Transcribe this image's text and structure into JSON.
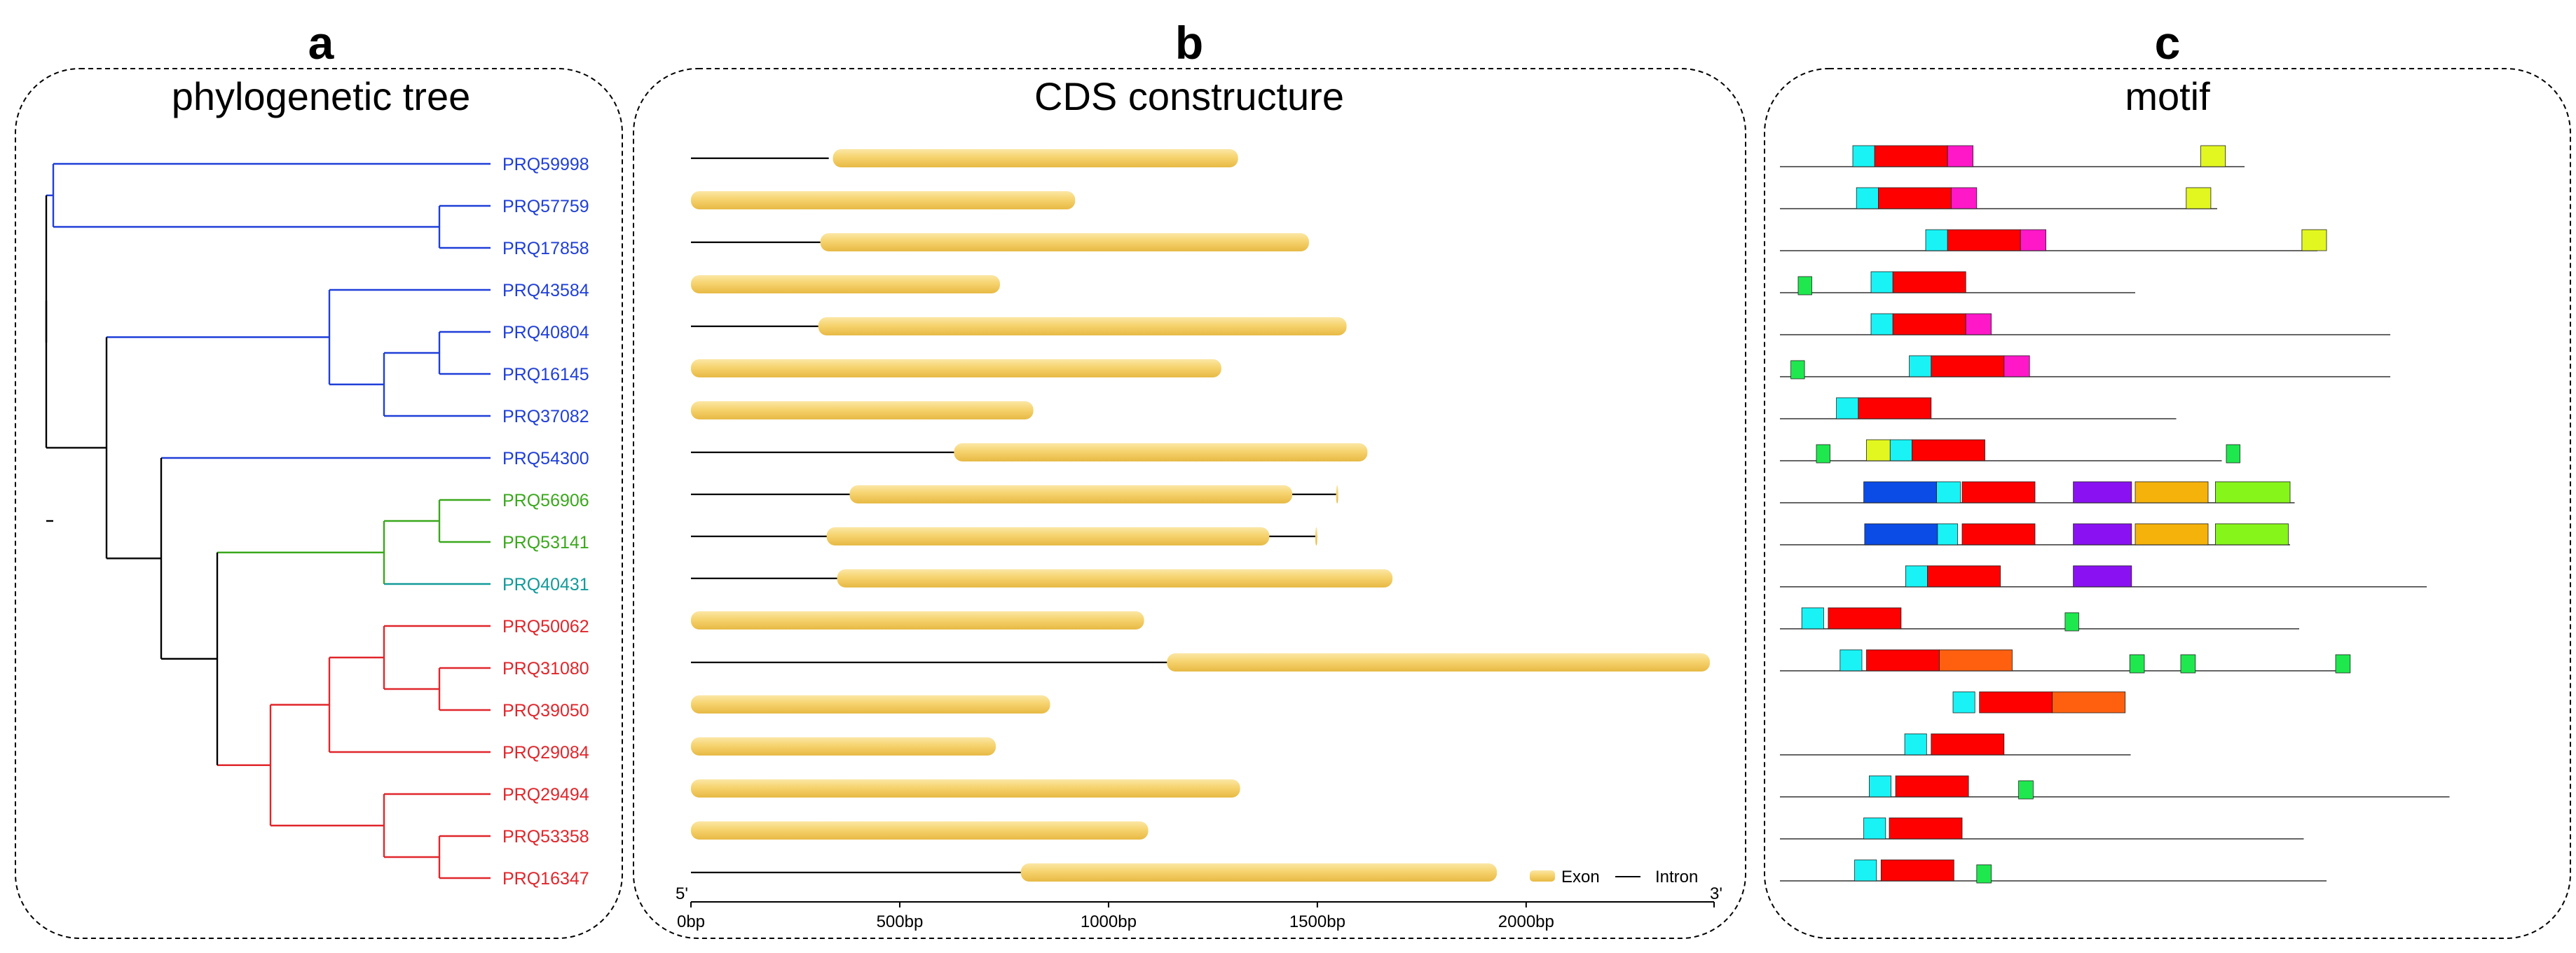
{
  "colors": {
    "blue_clade": "#1f3fd8",
    "green_clade": "#3aa81c",
    "teal_clade": "#139a9a",
    "red_clade": "#e0262b",
    "root": "#000000",
    "exon": "#f6d36e",
    "intron": "#000000",
    "panel_border": "#000000"
  },
  "panels": {
    "a": {
      "letter": "a",
      "title": "phylogenetic tree"
    },
    "b": {
      "letter": "b",
      "title": "CDS constructure"
    },
    "c": {
      "letter": "c",
      "title": "motif"
    }
  },
  "tree": {
    "leaves": [
      {
        "id": "PRQ59998",
        "clade": "blue"
      },
      {
        "id": "PRQ57759",
        "clade": "blue"
      },
      {
        "id": "PRQ17858",
        "clade": "blue"
      },
      {
        "id": "PRQ43584",
        "clade": "blue"
      },
      {
        "id": "PRQ40804",
        "clade": "blue"
      },
      {
        "id": "PRQ16145",
        "clade": "blue"
      },
      {
        "id": "PRQ37082",
        "clade": "blue"
      },
      {
        "id": "PRQ54300",
        "clade": "blue"
      },
      {
        "id": "PRQ56906",
        "clade": "green"
      },
      {
        "id": "PRQ53141",
        "clade": "green"
      },
      {
        "id": "PRQ40431",
        "clade": "teal"
      },
      {
        "id": "PRQ50062",
        "clade": "red"
      },
      {
        "id": "PRQ31080",
        "clade": "red"
      },
      {
        "id": "PRQ39050",
        "clade": "red"
      },
      {
        "id": "PRQ29084",
        "clade": "red"
      },
      {
        "id": "PRQ29494",
        "clade": "red"
      },
      {
        "id": "PRQ53358",
        "clade": "red"
      },
      {
        "id": "PRQ16347",
        "clade": "red"
      }
    ]
  },
  "chart_data": {
    "type": "gene-structure",
    "title": "CDS constructure",
    "x_unit": "bp",
    "xlim": [
      0,
      2450
    ],
    "ticks": [
      0,
      500,
      1000,
      1500,
      2000
    ],
    "tick_labels": [
      "0bp",
      "500bp",
      "1000bp",
      "1500bp",
      "2000bp"
    ],
    "end_labels": {
      "five_prime": "5'",
      "three_prime": "3'"
    },
    "legend": {
      "exon": "Exon",
      "intron": "Intron"
    },
    "genes": [
      {
        "id": "PRQ59998",
        "length": 330,
        "exons": [
          [
            340,
            1310
          ]
        ]
      },
      {
        "id": "PRQ57759",
        "length": 0,
        "exons": [
          [
            0,
            920
          ]
        ]
      },
      {
        "id": "PRQ17858",
        "length": 310,
        "exons": [
          [
            310,
            1480
          ]
        ]
      },
      {
        "id": "PRQ43584",
        "length": 0,
        "exons": [
          [
            0,
            740
          ]
        ]
      },
      {
        "id": "PRQ40804",
        "length": 305,
        "exons": [
          [
            305,
            1570
          ]
        ]
      },
      {
        "id": "PRQ16145",
        "length": 0,
        "exons": [
          [
            0,
            1270
          ]
        ]
      },
      {
        "id": "PRQ37082",
        "length": 0,
        "exons": [
          [
            0,
            820
          ]
        ]
      },
      {
        "id": "PRQ54300",
        "length": 630,
        "exons": [
          [
            630,
            1620
          ]
        ]
      },
      {
        "id": "PRQ56906",
        "length": 1545,
        "exons": [
          [
            380,
            1440
          ],
          [
            1545,
            1550
          ]
        ]
      },
      {
        "id": "PRQ53141",
        "length": 1500,
        "exons": [
          [
            325,
            1385
          ],
          [
            1495,
            1500
          ]
        ]
      },
      {
        "id": "PRQ40431",
        "length": 350,
        "exons": [
          [
            350,
            1680
          ]
        ]
      },
      {
        "id": "PRQ50062",
        "length": 0,
        "exons": [
          [
            0,
            1085
          ]
        ]
      },
      {
        "id": "PRQ31080",
        "length": 1140,
        "exons": [
          [
            1140,
            2440
          ]
        ]
      },
      {
        "id": "PRQ39050",
        "length": 0,
        "exons": [
          [
            0,
            860
          ]
        ]
      },
      {
        "id": "PRQ29084",
        "length": 0,
        "exons": [
          [
            0,
            730
          ]
        ]
      },
      {
        "id": "PRQ29494",
        "length": 0,
        "exons": [
          [
            0,
            1315
          ]
        ]
      },
      {
        "id": "PRQ53358",
        "length": 0,
        "exons": [
          [
            0,
            1095
          ]
        ]
      },
      {
        "id": "PRQ16347",
        "length": 790,
        "exons": [
          [
            790,
            1930
          ]
        ]
      }
    ]
  },
  "motifs": {
    "scale_note": "motif positions in protein length units",
    "motif_colors": {
      "m1": "#19f3f5",
      "m2": "#ff0000",
      "m3": "#ff18c8",
      "m4": "#e2f720",
      "m5": "#1ee84e",
      "m6": "#0b4be6",
      "m7": "#8a12f2",
      "m8": "#f5b20a",
      "m9": "#86f51a",
      "m10": "#ff6010"
    },
    "rows": [
      {
        "id": "PRQ59998",
        "length": 510,
        "motifs": [
          [
            "m1",
            80,
            104
          ],
          [
            "m2",
            104,
            184
          ],
          [
            "m3",
            184,
            212
          ],
          [
            "m4",
            462,
            489
          ]
        ]
      },
      {
        "id": "PRQ57759",
        "length": 480,
        "motifs": [
          [
            "m1",
            84,
            108
          ],
          [
            "m2",
            108,
            188
          ],
          [
            "m3",
            188,
            216
          ],
          [
            "m4",
            446,
            473
          ]
        ]
      },
      {
        "id": "PRQ17858",
        "length": 590,
        "motifs": [
          [
            "m1",
            160,
            184
          ],
          [
            "m2",
            184,
            264
          ],
          [
            "m3",
            264,
            292
          ],
          [
            "m4",
            573,
            600
          ]
        ]
      },
      {
        "id": "PRQ43584",
        "length": 390,
        "motifs": [
          [
            "m5",
            20,
            35
          ],
          [
            "m1",
            100,
            124
          ],
          [
            "m2",
            124,
            204
          ]
        ]
      },
      {
        "id": "PRQ40804",
        "length": 670,
        "motifs": [
          [
            "m1",
            100,
            124
          ],
          [
            "m2",
            124,
            204
          ],
          [
            "m3",
            204,
            232
          ]
        ]
      },
      {
        "id": "PRQ16145",
        "length": 670,
        "motifs": [
          [
            "m5",
            12,
            27
          ],
          [
            "m1",
            142,
            166
          ],
          [
            "m2",
            166,
            246
          ],
          [
            "m3",
            246,
            274
          ]
        ]
      },
      {
        "id": "PRQ37082",
        "length": 435,
        "motifs": [
          [
            "m1",
            62,
            86
          ],
          [
            "m2",
            86,
            166
          ]
        ]
      },
      {
        "id": "PRQ54300",
        "length": 485,
        "motifs": [
          [
            "m5",
            40,
            55
          ],
          [
            "m4",
            95,
            121
          ],
          [
            "m1",
            121,
            145
          ],
          [
            "m2",
            145,
            225
          ],
          [
            "m5",
            490,
            505
          ]
        ]
      },
      {
        "id": "PRQ56906",
        "length": 565,
        "motifs": [
          [
            "m6",
            92,
            172
          ],
          [
            "m1",
            172,
            198
          ],
          [
            "m2",
            200,
            280
          ],
          [
            "m7",
            322,
            386
          ],
          [
            "m8",
            390,
            470
          ],
          [
            "m9",
            478,
            560
          ]
        ]
      },
      {
        "id": "PRQ53141",
        "length": 560,
        "motifs": [
          [
            "m6",
            93,
            173
          ],
          [
            "m1",
            173,
            195
          ],
          [
            "m2",
            200,
            280
          ],
          [
            "m7",
            322,
            386
          ],
          [
            "m8",
            390,
            470
          ],
          [
            "m9",
            478,
            558
          ]
        ]
      },
      {
        "id": "PRQ40431",
        "length": 710,
        "motifs": [
          [
            "m1",
            138,
            162
          ],
          [
            "m2",
            162,
            242
          ],
          [
            "m7",
            322,
            386
          ]
        ]
      },
      {
        "id": "PRQ50062",
        "length": 570,
        "motifs": [
          [
            "m1",
            24,
            48
          ],
          [
            "m2",
            53,
            133
          ],
          [
            "m5",
            313,
            328
          ]
        ]
      },
      {
        "id": "PRQ31080",
        "length": 620,
        "motifs": [
          [
            "m1",
            66,
            90
          ],
          [
            "m2",
            95,
            175
          ],
          [
            "m10",
            175,
            255
          ],
          [
            "m5",
            384,
            400
          ],
          [
            "m5",
            440,
            456
          ],
          [
            "m5",
            610,
            626
          ]
        ]
      },
      {
        "id": "PRQ39050",
        "length": 0,
        "motifs": [
          [
            "m1",
            190,
            214
          ],
          [
            "m2",
            219,
            299
          ],
          [
            "m10",
            299,
            379
          ]
        ]
      },
      {
        "id": "PRQ29084",
        "length": 385,
        "motifs": [
          [
            "m1",
            137,
            161
          ],
          [
            "m2",
            166,
            246
          ]
        ]
      },
      {
        "id": "PRQ29494",
        "length": 735,
        "motifs": [
          [
            "m1",
            98,
            122
          ],
          [
            "m2",
            127,
            207
          ],
          [
            "m5",
            262,
            278
          ]
        ]
      },
      {
        "id": "PRQ53358",
        "length": 575,
        "motifs": [
          [
            "m1",
            92,
            116
          ],
          [
            "m2",
            120,
            200
          ]
        ]
      },
      {
        "id": "PRQ16347",
        "length": 600,
        "motifs": [
          [
            "m1",
            82,
            106
          ],
          [
            "m2",
            111,
            191
          ],
          [
            "m5",
            216,
            232
          ]
        ]
      }
    ]
  }
}
